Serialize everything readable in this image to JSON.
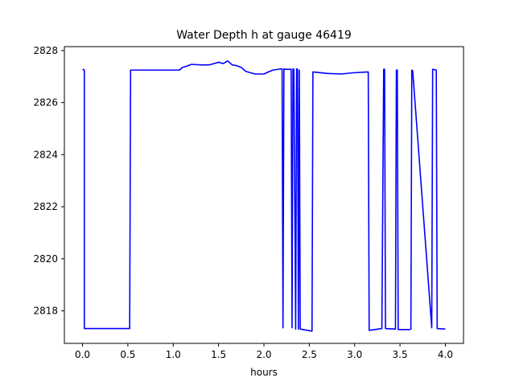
{
  "chart_data": {
    "type": "line",
    "title": "Water Depth h at gauge 46419",
    "xlabel": "hours",
    "ylabel": "",
    "xlim": [
      -0.2,
      4.2
    ],
    "ylim": [
      2816.75,
      2828.15
    ],
    "xticks": [
      0.0,
      0.5,
      1.0,
      1.5,
      2.0,
      2.5,
      3.0,
      3.5,
      4.0
    ],
    "xtick_labels": [
      "0.0",
      "0.5",
      "1.0",
      "1.5",
      "2.0",
      "2.5",
      "3.0",
      "3.5",
      "4.0"
    ],
    "yticks": [
      2818,
      2820,
      2822,
      2824,
      2826,
      2828
    ],
    "ytick_labels": [
      "2818",
      "2820",
      "2822",
      "2824",
      "2826",
      "2828"
    ],
    "grid": false,
    "colors": {
      "line": "#0000ff",
      "axes": "#000000"
    },
    "series": [
      {
        "x": [
          0.0,
          0.02,
          0.02,
          0.52,
          0.53,
          0.62,
          1.07,
          1.1,
          1.15,
          1.2,
          1.3,
          1.4,
          1.5,
          1.55,
          1.6,
          1.65,
          1.7,
          1.75,
          1.8,
          1.85,
          1.9,
          2.0,
          2.05,
          2.1,
          2.2,
          2.21,
          2.22,
          2.23,
          2.3,
          2.31,
          2.32,
          2.33,
          2.35,
          2.36,
          2.37,
          2.38,
          2.39,
          2.4,
          2.53,
          2.54,
          2.7,
          2.85,
          3.0,
          3.15,
          3.16,
          3.3,
          3.32,
          3.33,
          3.34,
          3.45,
          3.46,
          3.47,
          3.48,
          3.6,
          3.62,
          3.63,
          3.64,
          3.85,
          3.86,
          3.9,
          3.91,
          4.0
        ],
        "y": [
          2827.28,
          2827.25,
          2817.32,
          2817.32,
          2827.25,
          2827.25,
          2827.25,
          2827.35,
          2827.4,
          2827.47,
          2827.45,
          2827.45,
          2827.55,
          2827.5,
          2827.6,
          2827.45,
          2827.42,
          2827.35,
          2827.2,
          2827.15,
          2827.1,
          2827.1,
          2827.18,
          2827.25,
          2827.3,
          2817.35,
          2827.3,
          2827.28,
          2827.28,
          2817.35,
          2827.3,
          2827.28,
          2817.3,
          2827.3,
          2827.28,
          2817.3,
          2827.25,
          2817.3,
          2817.22,
          2827.18,
          2827.12,
          2827.1,
          2827.15,
          2827.18,
          2817.25,
          2817.32,
          2827.28,
          2827.28,
          2817.32,
          2817.3,
          2827.25,
          2827.25,
          2817.28,
          2817.28,
          2817.3,
          2827.25,
          2827.22,
          2817.35,
          2827.28,
          2827.25,
          2817.32,
          2817.3
        ]
      }
    ]
  }
}
